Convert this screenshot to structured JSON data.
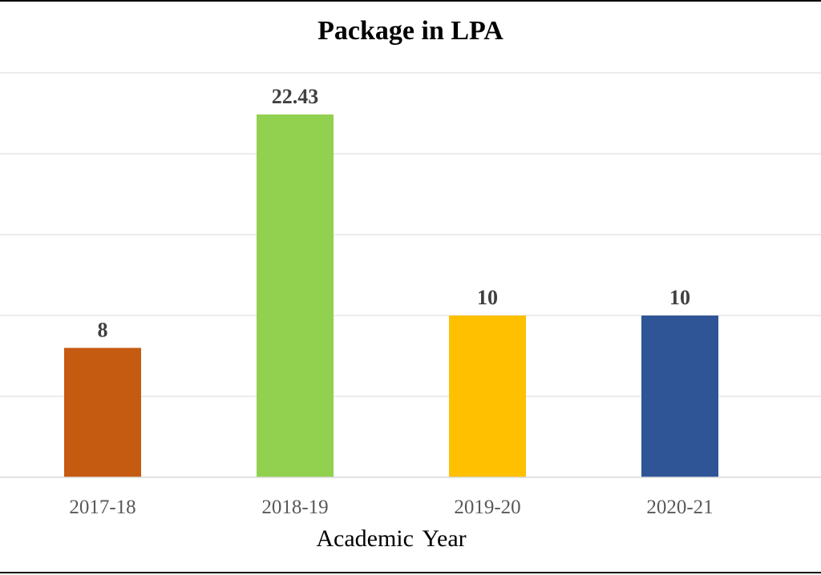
{
  "chart_data": {
    "type": "bar",
    "title": "Package in LPA",
    "xlabel": "Academic  Year",
    "ylabel": "",
    "categories": [
      "2017-18",
      "2018-19",
      "2019-20",
      "2020-21"
    ],
    "values": [
      8,
      22.43,
      10,
      10
    ],
    "data_labels": [
      "8",
      "22.43",
      "10",
      "10"
    ],
    "ylim": [
      0,
      25
    ],
    "gridlines": true,
    "legend": "none",
    "bar_colors": [
      "#c55a11",
      "#92d050",
      "#ffc000",
      "#2f5597"
    ],
    "gridline_color": "#d9d9d9"
  }
}
